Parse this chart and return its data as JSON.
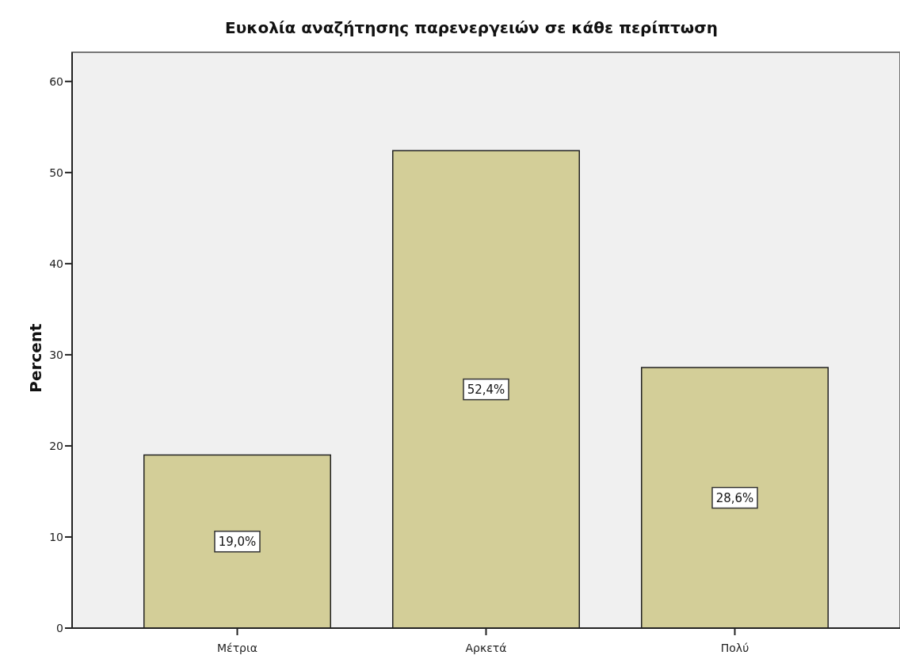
{
  "chart_data": {
    "type": "bar",
    "title": "Ευκολία αναζήτησης παρενεργειών σε κάθε περίπτωση",
    "ylabel": "Percent",
    "categories": [
      "Μέτρια",
      "Αρκετά",
      "Πολύ"
    ],
    "values": [
      19.0,
      52.4,
      28.6
    ],
    "color": "#d3ce98",
    "value_labels": [
      "19,0%",
      "52,4%",
      "28,6%"
    ],
    "ylim": [
      0,
      63.2
    ],
    "yticks": [
      0,
      10,
      20,
      30,
      40,
      50,
      60
    ]
  }
}
